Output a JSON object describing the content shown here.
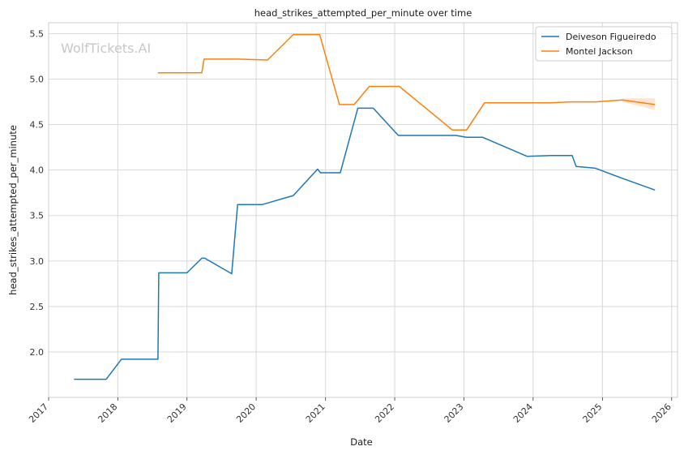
{
  "watermark": "WolfTickets.AI",
  "chart_data": {
    "type": "line",
    "title": "head_strikes_attempted_per_minute over time",
    "xlabel": "Date",
    "ylabel": "head_strikes_attempted_per_minute",
    "xlim": [
      "2017-01-01",
      "2026-02-01"
    ],
    "ylim": [
      1.5,
      5.62
    ],
    "x_ticks": [
      "2017",
      "2018",
      "2019",
      "2020",
      "2021",
      "2022",
      "2023",
      "2024",
      "2025",
      "2026"
    ],
    "y_ticks": [
      2.0,
      2.5,
      3.0,
      3.5,
      4.0,
      4.5,
      5.0,
      5.5
    ],
    "y_tick_labels": [
      "2.0",
      "2.5",
      "3.0",
      "3.5",
      "4.0",
      "4.5",
      "5.0",
      "5.5"
    ],
    "grid": true,
    "legend_position": "top-right",
    "series": [
      {
        "name": "Deiveson Figueiredo",
        "color": "#1f77b4",
        "points": [
          [
            "2017-05-15",
            1.7
          ],
          [
            "2017-11-01",
            1.7
          ],
          [
            "2018-01-20",
            1.92
          ],
          [
            "2018-08-01",
            1.92
          ],
          [
            "2018-08-05",
            2.87
          ],
          [
            "2019-01-01",
            2.87
          ],
          [
            "2019-03-20",
            3.03
          ],
          [
            "2019-04-05",
            3.03
          ],
          [
            "2019-08-25",
            2.86
          ],
          [
            "2019-09-25",
            3.62
          ],
          [
            "2020-02-01",
            3.62
          ],
          [
            "2020-07-15",
            3.72
          ],
          [
            "2020-11-20",
            4.01
          ],
          [
            "2020-12-05",
            3.97
          ],
          [
            "2021-03-20",
            3.97
          ],
          [
            "2021-06-20",
            4.68
          ],
          [
            "2021-09-10",
            4.68
          ],
          [
            "2022-01-20",
            4.38
          ],
          [
            "2022-11-20",
            4.38
          ],
          [
            "2023-01-15",
            4.36
          ],
          [
            "2023-04-10",
            4.36
          ],
          [
            "2023-12-01",
            4.15
          ],
          [
            "2024-04-05",
            4.16
          ],
          [
            "2024-07-25",
            4.16
          ],
          [
            "2024-08-15",
            4.04
          ],
          [
            "2024-11-25",
            4.02
          ],
          [
            "2025-04-15",
            3.91
          ],
          [
            "2025-10-05",
            3.78
          ]
        ]
      },
      {
        "name": "Montel Jackson",
        "color": "#ff7f0e",
        "band": {
          "x": [
            "2025-04-15",
            "2025-10-05"
          ],
          "lower": [
            4.75,
            4.66
          ],
          "upper": [
            4.79,
            4.79
          ]
        },
        "points": [
          [
            "2018-08-01",
            5.07
          ],
          [
            "2019-03-20",
            5.07
          ],
          [
            "2019-04-01",
            5.22
          ],
          [
            "2019-10-01",
            5.22
          ],
          [
            "2020-03-01",
            5.21
          ],
          [
            "2020-07-15",
            5.49
          ],
          [
            "2020-12-01",
            5.49
          ],
          [
            "2021-03-15",
            4.72
          ],
          [
            "2021-06-01",
            4.72
          ],
          [
            "2021-08-20",
            4.92
          ],
          [
            "2022-01-25",
            4.92
          ],
          [
            "2022-11-01",
            4.44
          ],
          [
            "2023-01-15",
            4.44
          ],
          [
            "2023-04-20",
            4.74
          ],
          [
            "2024-04-01",
            4.74
          ],
          [
            "2024-07-20",
            4.75
          ],
          [
            "2024-11-25",
            4.75
          ],
          [
            "2025-04-15",
            4.77
          ],
          [
            "2025-10-05",
            4.72
          ]
        ]
      }
    ]
  }
}
